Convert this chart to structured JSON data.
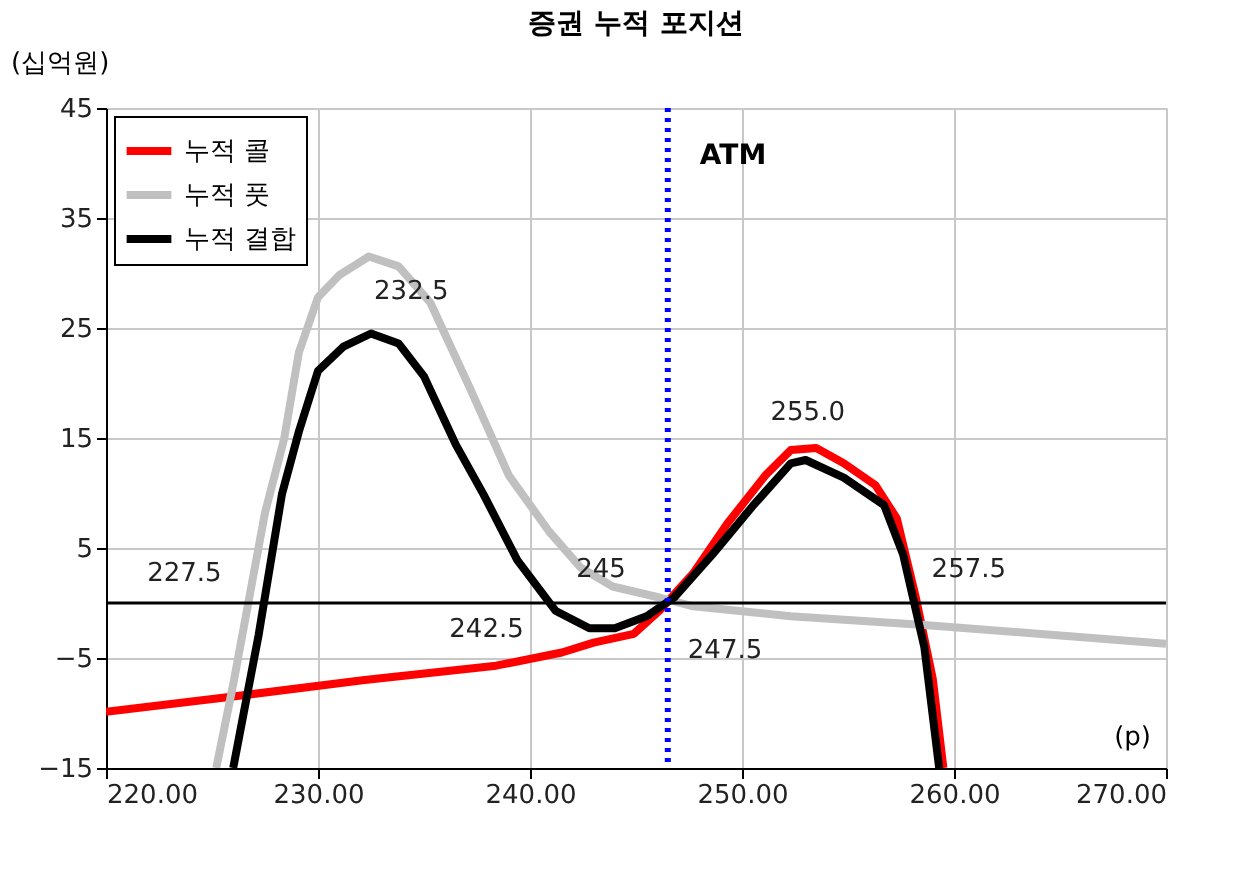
{
  "chart_data": {
    "type": "line",
    "title": "증권 누적 포지션",
    "xlabel": "(p)",
    "ylabel": "(십억원)",
    "xlim": [
      220,
      270
    ],
    "ylim": [
      -15,
      45
    ],
    "xticks": [
      {
        "value": 220,
        "label": "220.00"
      },
      {
        "value": 230,
        "label": "230.00"
      },
      {
        "value": 240,
        "label": "240.00"
      },
      {
        "value": 250,
        "label": "250.00"
      },
      {
        "value": 260,
        "label": "260.00"
      },
      {
        "value": 270,
        "label": "270.00"
      }
    ],
    "yticks": [
      -15,
      -5,
      5,
      15,
      25,
      35,
      45
    ],
    "grid": true,
    "legend": "top left",
    "line_style": "solid",
    "marker": "none",
    "series": [
      {
        "name": "누적 콜",
        "color": "#ff0000",
        "x": [
          220,
          226,
          232.2,
          238.4,
          241.5,
          243,
          244.9,
          246.1,
          247.7,
          249.3,
          251.1,
          252.3,
          253.5,
          254.8,
          256.3,
          257.3,
          258.2,
          259,
          259.5
        ],
        "values": [
          -9.9,
          -8.5,
          -7,
          -5.7,
          -4.5,
          -3.6,
          -2.8,
          -0.7,
          2.7,
          7.2,
          11.6,
          13.9,
          14.1,
          12.7,
          10.7,
          7.7,
          0.5,
          -6.9,
          -15
        ]
      },
      {
        "name": "누적 풋",
        "color": "#c0c0c0",
        "x": [
          225.2,
          226,
          227.5,
          228.4,
          229.1,
          230,
          231,
          232.4,
          233.8,
          235.3,
          237.2,
          239,
          240.9,
          242.4,
          243.9,
          246.1,
          247.7,
          252.3,
          258.6,
          264.7,
          270
        ],
        "values": [
          -15,
          -7.4,
          8.2,
          14.9,
          22.8,
          27.8,
          29.8,
          31.5,
          30.6,
          27.3,
          19.4,
          11.6,
          6.5,
          3.2,
          1.5,
          0.5,
          -0.3,
          -1.2,
          -2,
          -2.9,
          -3.7
        ]
      },
      {
        "name": "누적 결합",
        "color": "#000000",
        "x": [
          226,
          227.2,
          228.3,
          229.1,
          230,
          231.2,
          232.5,
          233.8,
          235,
          236.5,
          237.8,
          239.4,
          241.2,
          242.8,
          244,
          245.5,
          246.8,
          248.6,
          250.5,
          252.3,
          253,
          254.8,
          256.7,
          257.6,
          258.6,
          259.3
        ],
        "values": [
          -15,
          -2.9,
          9.9,
          15.6,
          21.1,
          23.3,
          24.5,
          23.6,
          20.6,
          14.4,
          9.9,
          3.9,
          -0.7,
          -2.3,
          -2.3,
          -1.2,
          0.5,
          4.4,
          8.8,
          12.7,
          13,
          11.4,
          8.9,
          4.4,
          -4,
          -15
        ]
      }
    ],
    "ref_lines": [
      {
        "axis": "x",
        "value": 246.5,
        "label": "ATM",
        "color": "#0000ff",
        "line_style": "dotted"
      },
      {
        "axis": "y",
        "value": 0,
        "color": "#000000",
        "line_style": "solid"
      }
    ],
    "annotations": [
      "227.5",
      "232.5",
      "242.5",
      "245",
      "247.5",
      "255.0",
      "257.5"
    ]
  }
}
